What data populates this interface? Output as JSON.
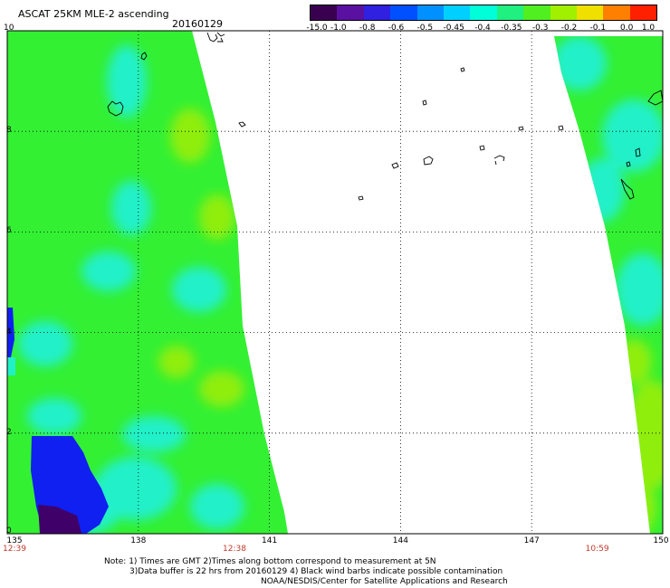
{
  "title": "ASCAT 25KM MLE-2 ascending",
  "date": "20160129",
  "colorbar": {
    "labels": [
      "-15.0",
      "-1.0",
      "-0.8",
      "-0.6",
      "-0.5",
      "-0.45",
      "-0.4",
      "-0.35",
      "-0.3",
      "-0.2",
      "-0.1",
      "0.0",
      "1.0"
    ],
    "colors": [
      "#3a0050",
      "#5a10a0",
      "#3020e0",
      "#0050ff",
      "#0090ff",
      "#00d0ff",
      "#00ffd8",
      "#20f080",
      "#50f020",
      "#a0f000",
      "#f0e000",
      "#ff8000",
      "#ff2000"
    ]
  },
  "map": {
    "lon_ticks": [
      "135",
      "138",
      "141",
      "144",
      "147",
      "150"
    ],
    "lat_ticks": [
      "0",
      "2",
      "4",
      "6",
      "8",
      "10"
    ],
    "time_labels": [
      {
        "text": "12:39",
        "lon": 135
      },
      {
        "text": "12:38",
        "lon": 140.2
      },
      {
        "text": "10:59",
        "lon": 148.5
      }
    ],
    "field_color": "#33f033",
    "cyan_color": "#20f0c8",
    "blue_color": "#1020f0",
    "purple_color": "#40006a"
  },
  "notes": [
    "Note: 1) Times are GMT 2)Times along bottom correspond to measurement at 5N",
    "3)Data buffer is 22 hrs from 20160129 4) Black wind barbs indicate possible contamination",
    "NOAA/NESDIS/Center for Satellite Applications and Research"
  ]
}
